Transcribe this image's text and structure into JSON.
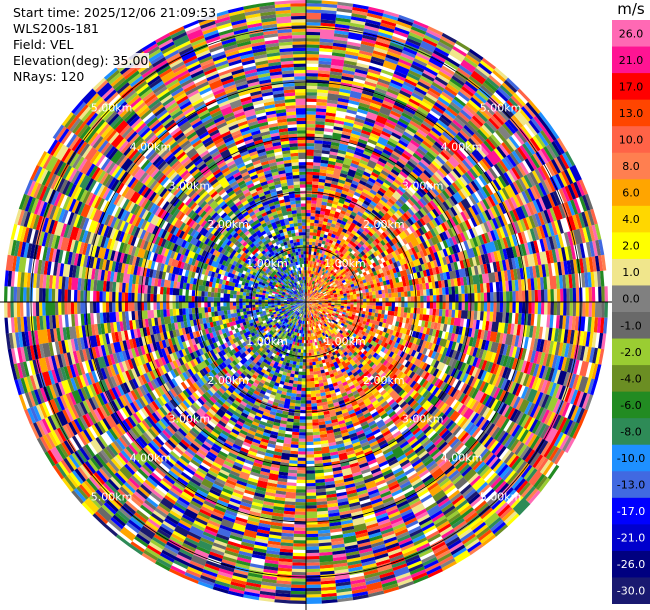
{
  "info": {
    "start_time": "Start time: 2025/12/06 21:09:53",
    "instrument": "WLS200s-181",
    "field": "Field: VEL",
    "elevation": "Elevation(deg): 35.00",
    "nrays": "NRays: 120"
  },
  "colorbar": {
    "unit": "m/s",
    "ticks": [
      "26.0",
      "21.0",
      "17.0",
      "13.0",
      "10.0",
      "8.0",
      "6.0",
      "4.0",
      "2.0",
      "1.0",
      "0.0",
      "-1.0",
      "-2.0",
      "-4.0",
      "-6.0",
      "-8.0",
      "-10.0",
      "-13.0",
      "-17.0",
      "-21.0",
      "-26.0",
      "-30.0"
    ],
    "colors": [
      "#ff69b4",
      "#ff1493",
      "#ff0000",
      "#ff4500",
      "#ff6347",
      "#ff7f50",
      "#ffa500",
      "#ffd700",
      "#ffff00",
      "#f0e68c",
      "#808080",
      "#696969",
      "#9acd32",
      "#6b8e23",
      "#228b22",
      "#2e8b57",
      "#1e90ff",
      "#4169e1",
      "#0000ff",
      "#0000cd",
      "#000080",
      "#191970"
    ]
  },
  "chart_data": {
    "type": "heatmap",
    "subtype": "polar-ppi",
    "field": "VEL",
    "units": "m/s",
    "nrays": 120,
    "elevation_deg": 35.0,
    "range_rings_km": [
      "1.00km",
      "2.00km",
      "3.00km",
      "4.00km",
      "5.00km"
    ],
    "value_range": [
      -30.0,
      26.0
    ],
    "pattern": "noise-dominated velocities at long range; positive (yellow/red) values on the right half and negative (blue/green) values on the left half near the center"
  }
}
